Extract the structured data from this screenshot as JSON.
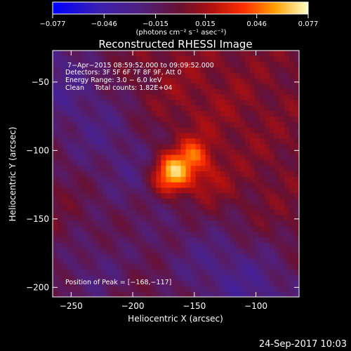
{
  "chart_data": {
    "type": "heatmap",
    "title": "Reconstructed RHESSI Image",
    "xlabel": "Heliocentric X (arcsec)",
    "ylabel": "Heliocentric Y (arcsec)",
    "xlim": [
      -265,
      -65
    ],
    "ylim": [
      -207,
      -27
    ],
    "x_ticks": [
      {
        "value": -250,
        "label": "−250"
      },
      {
        "value": -200,
        "label": "−200"
      },
      {
        "value": -150,
        "label": "−150"
      },
      {
        "value": -100,
        "label": "−100"
      }
    ],
    "y_ticks": [
      {
        "value": -50,
        "label": "−50"
      },
      {
        "value": -100,
        "label": "−100"
      },
      {
        "value": -150,
        "label": "−150"
      },
      {
        "value": -200,
        "label": "−200"
      }
    ],
    "colorbar": {
      "min": -0.077,
      "max": 0.077,
      "label": "(photons cm⁻² s⁻¹ asec⁻²)",
      "ticks": [
        {
          "value": -0.077,
          "label": "−0.077"
        },
        {
          "value": -0.046,
          "label": "−0.046"
        },
        {
          "value": -0.015,
          "label": "−0.015"
        },
        {
          "value": 0.015,
          "label": "0.015"
        },
        {
          "value": 0.046,
          "label": "0.046"
        },
        {
          "value": 0.077,
          "label": "0.077"
        }
      ]
    },
    "info_lines": [
      " 7−Apr−2015 08:59:52.000 to 09:09:52.000",
      "Detectors: 3F 5F 6F 7F 8F 9F, Att 0",
      "Energy Range: 3.0 − 6.0 keV",
      "Clean     Total counts: 1.82E+04"
    ],
    "peak_text": "Position of Peak = [−168,−117]",
    "peak": [
      -168,
      -117
    ],
    "peak_flux": 0.077,
    "grid": false
  },
  "footer": {
    "timestamp": "24-Sep-2017 10:03"
  }
}
